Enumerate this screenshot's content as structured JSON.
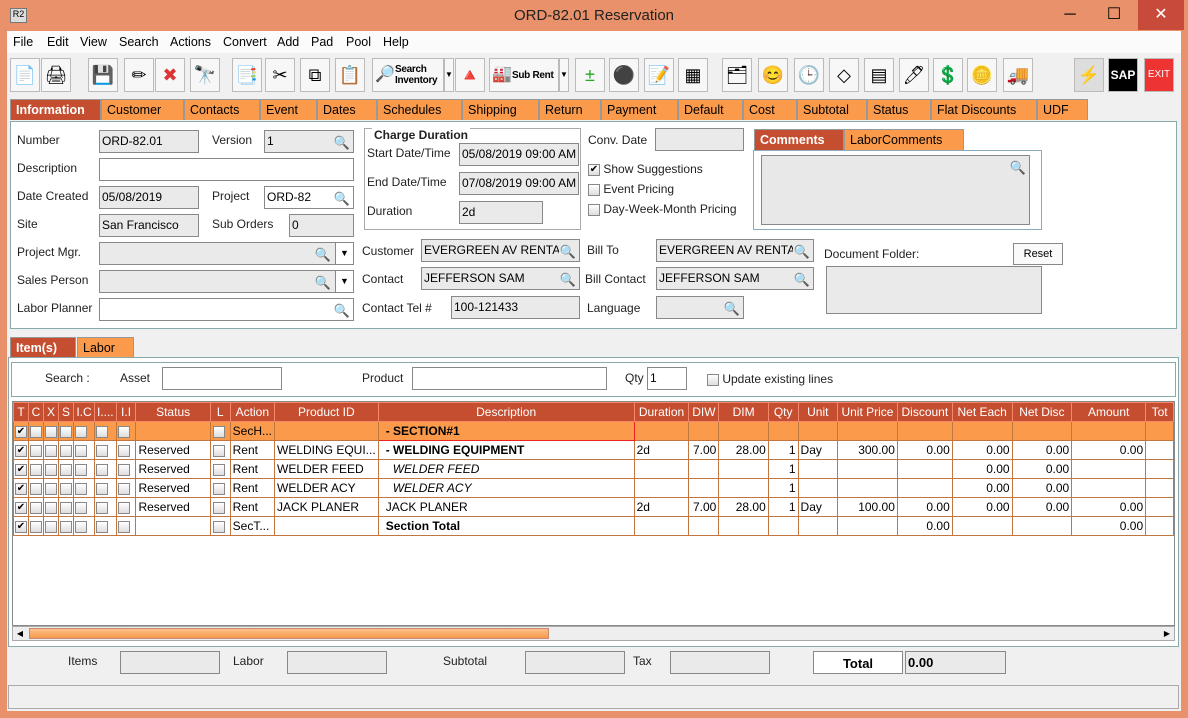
{
  "window": {
    "title": "ORD-82.01 Reservation",
    "app_icon": "R2"
  },
  "menu": [
    "File",
    "Edit",
    "View",
    "Search",
    "Actions",
    "Convert",
    "Add",
    "Pad",
    "Pool",
    "Help"
  ],
  "toolbar": {
    "search_inventory": "Search Inventory",
    "sub_rent": "Sub Rent",
    "sap": "SAP",
    "exit": "EXIT"
  },
  "tabs": [
    "Information",
    "Customer",
    "Contacts",
    "Event",
    "Dates",
    "Schedules",
    "Shipping",
    "Return",
    "Payment",
    "Default",
    "Cost",
    "Subtotal",
    "Status",
    "Flat Discounts",
    "UDF"
  ],
  "info": {
    "number_label": "Number",
    "number": "ORD-82.01",
    "version_label": "Version",
    "version": "1",
    "description_label": "Description",
    "description": "",
    "date_created_label": "Date Created",
    "date_created": "05/08/2019",
    "project_label": "Project",
    "project": "ORD-82",
    "site_label": "Site",
    "site": "San Francisco",
    "sub_orders_label": "Sub Orders",
    "sub_orders": "0",
    "project_mgr_label": "Project Mgr.",
    "sales_person_label": "Sales Person",
    "labor_planner_label": "Labor Planner",
    "charge_duration_label": "Charge Duration",
    "start_label": "Start Date/Time",
    "start": "05/08/2019 09:00 AM",
    "end_label": "End Date/Time",
    "end": "07/08/2019 09:00 AM",
    "duration_label": "Duration",
    "duration": "2d",
    "conv_date_label": "Conv. Date",
    "conv_date": "",
    "show_suggestions": "Show Suggestions",
    "event_pricing": "Event Pricing",
    "dwm_pricing": "Day-Week-Month Pricing",
    "customer_label": "Customer",
    "customer": "EVERGREEN AV RENTALS",
    "bill_to_label": "Bill To",
    "bill_to": "EVERGREEN AV RENTALS",
    "contact_label": "Contact",
    "contact": "JEFFERSON SAM",
    "bill_contact_label": "Bill Contact",
    "bill_contact": "JEFFERSON SAM",
    "contact_tel_label": "Contact Tel #",
    "contact_tel": "100-121433",
    "language_label": "Language",
    "language": "",
    "comments_tab": "Comments",
    "labor_comments_tab": "LaborComments",
    "document_folder_label": "Document Folder:",
    "reset": "Reset"
  },
  "items": {
    "tabs": [
      "Item(s)",
      "Labor"
    ],
    "search_label": "Search :",
    "asset_label": "Asset",
    "product_label": "Product",
    "qty_label": "Qty",
    "qty": "1",
    "update_existing": "Update existing lines",
    "columns": [
      "T",
      "C",
      "X",
      "S",
      "I.C",
      "I....",
      "I.I",
      "Status",
      "L",
      "Action",
      "Product ID",
      "Description",
      "Duration",
      "DIW",
      "DIM",
      "Qty",
      "Unit",
      "Unit Price",
      "Discount",
      "Net Each",
      "Net Disc",
      "Amount",
      "Tot"
    ],
    "rows": [
      {
        "type": "sec",
        "status": "",
        "action": "SecH...",
        "product_id": "",
        "description": "-  SECTION#1",
        "duration": "",
        "diw": "",
        "dim": "",
        "qty": "",
        "unit": "",
        "unit_price": "",
        "discount": "",
        "net_each": "",
        "net_disc": "",
        "amount": ""
      },
      {
        "type": "bold",
        "status": "Reserved",
        "action": "Rent",
        "product_id": "WELDING EQUI...",
        "description": "-  WELDING EQUIPMENT",
        "duration": "2d",
        "diw": "7.00",
        "dim": "28.00",
        "qty": "1",
        "unit": "Day",
        "unit_price": "300.00",
        "discount": "0.00",
        "net_each": "0.00",
        "net_disc": "0.00",
        "amount": "0.00"
      },
      {
        "type": "it",
        "status": "Reserved",
        "action": "Rent",
        "product_id": "WELDER FEED",
        "description": "WELDER FEED",
        "duration": "",
        "diw": "",
        "dim": "",
        "qty": "1",
        "unit": "",
        "unit_price": "",
        "discount": "",
        "net_each": "0.00",
        "net_disc": "0.00",
        "amount": ""
      },
      {
        "type": "it",
        "status": "Reserved",
        "action": "Rent",
        "product_id": "WELDER ACY",
        "description": "WELDER ACY",
        "duration": "",
        "diw": "",
        "dim": "",
        "qty": "1",
        "unit": "",
        "unit_price": "",
        "discount": "",
        "net_each": "0.00",
        "net_disc": "0.00",
        "amount": ""
      },
      {
        "type": "",
        "status": "Reserved",
        "action": "Rent",
        "product_id": "JACK PLANER",
        "description": "JACK PLANER",
        "duration": "2d",
        "diw": "7.00",
        "dim": "28.00",
        "qty": "1",
        "unit": "Day",
        "unit_price": "100.00",
        "discount": "0.00",
        "net_each": "0.00",
        "net_disc": "0.00",
        "amount": "0.00"
      },
      {
        "type": "total",
        "status": "",
        "action": "SecT...",
        "product_id": "",
        "description": "Section Total",
        "duration": "",
        "diw": "",
        "dim": "",
        "qty": "",
        "unit": "",
        "unit_price": "",
        "discount": "0.00",
        "net_each": "",
        "net_disc": "",
        "amount": "0.00"
      }
    ]
  },
  "footer": {
    "items_label": "Items",
    "labor_label": "Labor",
    "subtotal_label": "Subtotal",
    "tax_label": "Tax",
    "total_label": "Total",
    "total": "0.00"
  }
}
